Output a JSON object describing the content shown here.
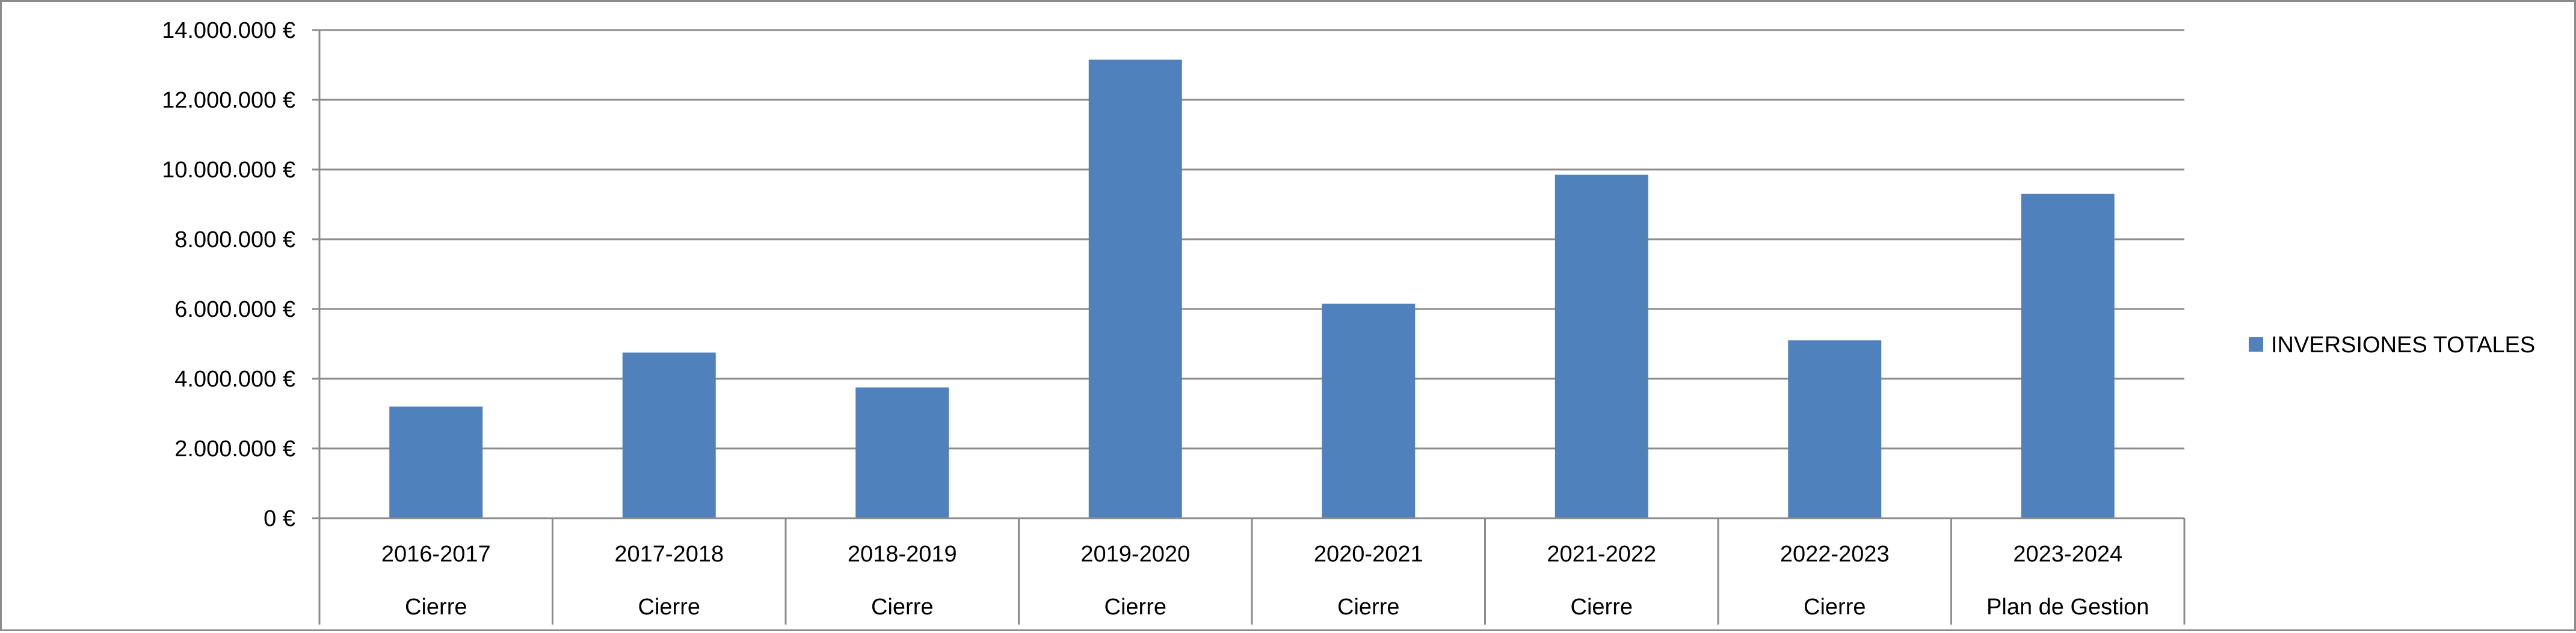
{
  "chart_data": {
    "type": "bar",
    "title": "",
    "xlabel": "",
    "ylabel": "",
    "categories": [
      "2016-2017",
      "2017-2018",
      "2018-2019",
      "2019-2020",
      "2020-2021",
      "2021-2022",
      "2022-2023",
      "2023-2024"
    ],
    "category_sublabels": [
      "Cierre",
      "Cierre",
      "Cierre",
      "Cierre",
      "Cierre",
      "Cierre",
      "Cierre",
      "Plan de Gestion"
    ],
    "series": [
      {
        "name": "INVERSIONES TOTALES",
        "color": "#4F81BD",
        "values": [
          3200000,
          4750000,
          3750000,
          13150000,
          6150000,
          9850000,
          5100000,
          9300000
        ]
      }
    ],
    "ylim": [
      0,
      14000000
    ],
    "yticks": [
      0,
      2000000,
      4000000,
      6000000,
      8000000,
      10000000,
      12000000,
      14000000
    ],
    "ytick_labels": [
      "0 €",
      "2.000.000 €",
      "4.000.000 €",
      "6.000.000 €",
      "8.000.000 €",
      "10.000.000 €",
      "12.000.000 €",
      "14.000.000 €"
    ],
    "grid": true,
    "legend_position": "right"
  }
}
